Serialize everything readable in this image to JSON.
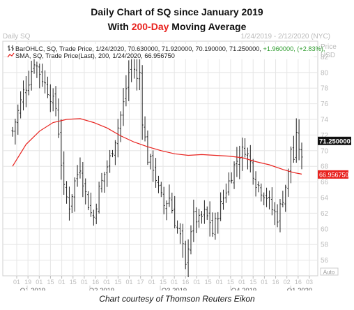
{
  "title_line1": "Daily Chart of SQ since January 2019",
  "title_line2_prefix": "With ",
  "title_line2_highlight": "200-Day",
  "title_line2_suffix": " Moving Average",
  "caption": "Chart courtesy of Thomson Reuters Eikon",
  "colors": {
    "price_bars": "#222222",
    "sma_line": "#e8231f",
    "highlight_text": "#e8231f",
    "gain_text": "#2a9a2a",
    "grid": "#e6e6e6",
    "last_price_label_bg": "#111111",
    "sma_label_bg": "#e8231f"
  },
  "chart_data": {
    "type": "line",
    "header_left": "Daily SQ",
    "header_right": "1/24/2019 - 2/12/2020 (NYC)",
    "axis_unit_label_1": "Price",
    "axis_unit_label_2": "USD",
    "legend": [
      {
        "icon": "bar-ohlc-icon",
        "text_prefix": "BarOHLC, SQ, Trade Price, 1/24/2020, 70.630000, 71.920000, 70.190000, 71.250000, ",
        "text_change": "+1.960000, (+2.83%),",
        "has_change": true
      },
      {
        "icon": "sma-icon",
        "text_prefix": "SMA, SQ, Trade Price(Last), 200, 1/24/2020, 66.956750",
        "text_change": "",
        "has_change": false
      }
    ],
    "yaxis": {
      "min": 54,
      "max": 84,
      "ticks": [
        "56",
        "58",
        "60",
        "62",
        "64",
        "66",
        "68",
        "70",
        "72",
        "74",
        "76",
        "78",
        "80",
        "82"
      ]
    },
    "x_day_labels": [
      "01",
      "19",
      "01",
      "15",
      "01",
      "15",
      "01",
      "16",
      "01",
      "15",
      "01",
      "17",
      "01",
      "15",
      "01",
      "16",
      "01",
      "15",
      "01",
      "15",
      "01",
      "15",
      "01",
      "16",
      "02",
      "16",
      "03"
    ],
    "x_quarter_labels": [
      "Q1 2019",
      "Q2 2019",
      "Q3 2019",
      "Q4 2019",
      "Q1 2020"
    ],
    "last_price_label": "71.250000",
    "sma_value_label": "66.956750",
    "auto_label": "Auto",
    "price_series": [
      [
        0,
        72.5
      ],
      [
        2,
        75
      ],
      [
        4,
        77.5
      ],
      [
        6,
        79
      ],
      [
        8,
        81.5
      ],
      [
        10,
        80
      ],
      [
        12,
        78.5
      ],
      [
        14,
        77
      ],
      [
        16,
        75.5
      ],
      [
        17,
        72.5
      ],
      [
        18,
        68.5
      ],
      [
        19,
        65
      ],
      [
        21,
        63
      ],
      [
        23,
        66
      ],
      [
        25,
        68
      ],
      [
        27,
        64.5
      ],
      [
        29,
        62
      ],
      [
        30,
        61.5
      ],
      [
        32,
        65
      ],
      [
        34,
        67
      ],
      [
        36,
        69
      ],
      [
        38,
        71.5
      ],
      [
        39,
        73
      ],
      [
        41,
        76
      ],
      [
        42,
        78
      ],
      [
        43,
        80
      ],
      [
        44,
        82
      ],
      [
        45,
        80.5
      ],
      [
        46,
        79
      ],
      [
        47,
        80
      ],
      [
        48,
        74
      ],
      [
        50,
        69
      ],
      [
        52,
        68
      ],
      [
        54,
        65
      ],
      [
        56,
        63
      ],
      [
        58,
        64
      ],
      [
        60,
        61
      ],
      [
        62,
        59
      ],
      [
        63,
        57.5
      ],
      [
        64,
        55
      ],
      [
        65,
        58
      ],
      [
        66,
        60
      ],
      [
        67,
        61.5
      ],
      [
        69,
        61
      ],
      [
        71,
        62
      ],
      [
        73,
        61
      ],
      [
        74,
        59.5
      ],
      [
        76,
        62
      ],
      [
        78,
        64
      ],
      [
        80,
        66
      ],
      [
        82,
        68
      ],
      [
        84,
        69.5
      ],
      [
        86,
        70.3
      ],
      [
        88,
        68.5
      ],
      [
        90,
        66
      ],
      [
        92,
        65
      ],
      [
        94,
        64.2
      ],
      [
        96,
        62.5
      ],
      [
        98,
        61.5
      ],
      [
        100,
        64
      ],
      [
        102,
        67
      ],
      [
        103,
        70.3
      ],
      [
        104,
        69
      ],
      [
        105,
        71.6
      ],
      [
        106,
        70.5
      ],
      [
        107,
        68.6
      ]
    ],
    "sma_series": [
      [
        0,
        68
      ],
      [
        5,
        70.8
      ],
      [
        10,
        72.5
      ],
      [
        15,
        73.6
      ],
      [
        20,
        74
      ],
      [
        25,
        74.1
      ],
      [
        30,
        73.6
      ],
      [
        35,
        72.9
      ],
      [
        40,
        71.9
      ],
      [
        45,
        71.1
      ],
      [
        50,
        70.5
      ],
      [
        55,
        70
      ],
      [
        60,
        69.6
      ],
      [
        65,
        69.4
      ],
      [
        70,
        69.5
      ],
      [
        75,
        69.4
      ],
      [
        80,
        69.3
      ],
      [
        85,
        69.1
      ],
      [
        90,
        68.6
      ],
      [
        95,
        68.2
      ],
      [
        100,
        67.6
      ],
      [
        104,
        67.2
      ],
      [
        107,
        67
      ]
    ]
  }
}
